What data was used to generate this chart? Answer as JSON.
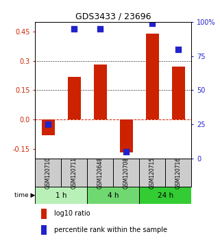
{
  "title": "GDS3433 / 23696",
  "samples": [
    "GSM120710",
    "GSM120711",
    "GSM120648",
    "GSM120708",
    "GSM120715",
    "GSM120716"
  ],
  "log10_ratio": [
    -0.08,
    0.22,
    0.28,
    -0.17,
    0.44,
    0.27
  ],
  "percentile_rank": [
    25,
    95,
    95,
    5,
    99,
    80
  ],
  "groups": [
    {
      "label": "1 h",
      "indices": [
        0,
        1
      ],
      "color": "#b8f0b8"
    },
    {
      "label": "4 h",
      "indices": [
        2,
        3
      ],
      "color": "#70d870"
    },
    {
      "label": "24 h",
      "indices": [
        4,
        5
      ],
      "color": "#33cc33"
    }
  ],
  "bar_color": "#cc2200",
  "dot_color": "#2222cc",
  "ylim_left": [
    -0.2,
    0.5
  ],
  "ylim_right": [
    0,
    100
  ],
  "yticks_left": [
    -0.15,
    0.0,
    0.15,
    0.3,
    0.45
  ],
  "yticks_right": [
    0,
    25,
    50,
    75,
    100
  ],
  "ytick_labels_right": [
    "0",
    "25",
    "50",
    "75",
    "100%"
  ],
  "hlines_dotted": [
    0.15,
    0.3
  ],
  "hline_dashed": 0.0,
  "bg_color_plot": "#ffffff",
  "bg_color_label": "#cccccc",
  "bar_width": 0.5,
  "dot_size": 28
}
